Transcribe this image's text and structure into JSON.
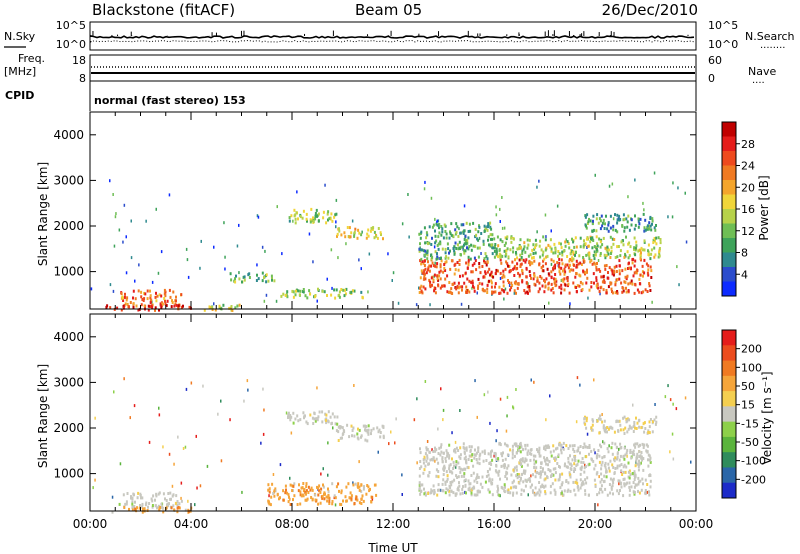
{
  "header": {
    "site": "Blackstone (fitACF)",
    "beam": "Beam 05",
    "date": "26/Dec/2010"
  },
  "strips": {
    "noise": {
      "left_label": "N.Sky",
      "right_label": "N.Search",
      "right_label_line": "........",
      "left_ticks": [
        "10^5",
        "10^0"
      ],
      "right_ticks": [
        "10^5",
        "10^0"
      ]
    },
    "freq": {
      "left_label": "Freq.",
      "left_unit": "[MHz]",
      "right_label": "Nave",
      "right_label_line": "....",
      "left_ticks": [
        "18",
        "8"
      ],
      "right_ticks": [
        "60",
        "0"
      ]
    },
    "cpid": {
      "left_label": "CPID",
      "text": "normal (fast stereo) 153"
    }
  },
  "chart_data": [
    {
      "type": "heatmap",
      "name": "power",
      "ylabel": "Slant Range [km]",
      "xlabel": "",
      "xlim": [
        0,
        24
      ],
      "ylim": [
        180,
        4500
      ],
      "yticks": [
        "1000",
        "2000",
        "3000",
        "4000"
      ],
      "colorbar": {
        "label": "Power [dB]",
        "ticks": [
          "28",
          "24",
          "20",
          "16",
          "12",
          "8",
          "4"
        ],
        "colors": [
          "#0d2bff",
          "#2b4ccc",
          "#2f8a8f",
          "#3ea35a",
          "#6fbe55",
          "#b7d24a",
          "#f0d53a",
          "#f4a52c",
          "#f07a22",
          "#ee4a1e",
          "#e51d1b",
          "#c00000"
        ]
      },
      "echo_regions": [
        {
          "t": [
            1.1,
            3.6
          ],
          "range": [
            260,
            620
          ],
          "mean_db": 22
        },
        {
          "t": [
            0.6,
            4.0
          ],
          "range": [
            180,
            300
          ],
          "mean_db": 26
        },
        {
          "t": [
            4.5,
            6.0
          ],
          "range": [
            180,
            300
          ],
          "mean_db": 14
        },
        {
          "t": [
            5.5,
            7.3
          ],
          "range": [
            800,
            1000
          ],
          "mean_db": 10
        },
        {
          "t": [
            7.5,
            10.9
          ],
          "range": [
            450,
            650
          ],
          "mean_db": 12
        },
        {
          "t": [
            7.8,
            9.8
          ],
          "range": [
            2100,
            2400
          ],
          "mean_db": 12
        },
        {
          "t": [
            9.7,
            11.6
          ],
          "range": [
            1750,
            2000
          ],
          "mean_db": 16
        },
        {
          "t": [
            13.0,
            22.2
          ],
          "range": [
            550,
            1300
          ],
          "mean_db": 24
        },
        {
          "t": [
            13.0,
            16.0
          ],
          "range": [
            1300,
            2100
          ],
          "mean_db": 9
        },
        {
          "t": [
            16.0,
            22.6
          ],
          "range": [
            1300,
            1800
          ],
          "mean_db": 13
        },
        {
          "t": [
            19.5,
            22.4
          ],
          "range": [
            1900,
            2300
          ],
          "mean_db": 8
        }
      ]
    },
    {
      "type": "heatmap",
      "name": "velocity",
      "ylabel": "Slant Range [km]",
      "xlabel": "Time UT",
      "xlim": [
        0,
        24
      ],
      "ylim": [
        180,
        4500
      ],
      "xticks": [
        "00:00",
        "04:00",
        "08:00",
        "12:00",
        "16:00",
        "20:00",
        "00:00"
      ],
      "yticks": [
        "1000",
        "2000",
        "3000",
        "4000"
      ],
      "colorbar": {
        "label": "Velocity [m s⁻¹]",
        "ticks": [
          "200",
          "100",
          "50",
          "15",
          "-15",
          "-50",
          "-100",
          "-200"
        ],
        "colors": [
          "#1c2bc8",
          "#2a66a8",
          "#2f8c5c",
          "#5ab43c",
          "#8dd04a",
          "#c8c8c0",
          "#f4cf50",
          "#f5a53a",
          "#f07a22",
          "#ec4c1e",
          "#e51d1b"
        ]
      },
      "echo_regions": [
        {
          "t": [
            1.1,
            3.6
          ],
          "range": [
            260,
            620
          ],
          "mean_vel": 0
        },
        {
          "t": [
            0.6,
            4.0
          ],
          "range": [
            180,
            300
          ],
          "mean_vel": -60
        },
        {
          "t": [
            7.0,
            11.3
          ],
          "range": [
            350,
            820
          ],
          "mean_vel": -70
        },
        {
          "t": [
            7.8,
            9.8
          ],
          "range": [
            2100,
            2400
          ],
          "mean_vel": 0
        },
        {
          "t": [
            9.7,
            11.6
          ],
          "range": [
            1750,
            2100
          ],
          "mean_vel": 0
        },
        {
          "t": [
            13.0,
            22.2
          ],
          "range": [
            550,
            1700
          ],
          "mean_vel": 0
        },
        {
          "t": [
            19.5,
            22.4
          ],
          "range": [
            1900,
            2300
          ],
          "mean_vel": -15
        }
      ]
    }
  ]
}
